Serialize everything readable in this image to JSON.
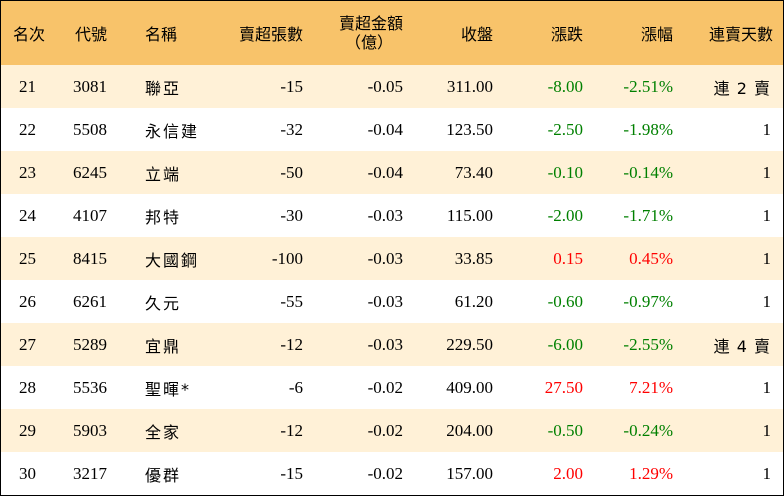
{
  "table": {
    "headers": {
      "rank": "名次",
      "code": "代號",
      "name": "名稱",
      "net_sell_lots": "賣超張數",
      "net_sell_amount_line1": "賣超金額",
      "net_sell_amount_line2": "（億）",
      "close": "收盤",
      "change": "漲跌",
      "change_pct": "漲幅",
      "consecutive_days": "連賣天數"
    },
    "colors": {
      "header_bg": "#f8c36a",
      "odd_row_bg": "#fff1d7",
      "even_row_bg": "#ffffff",
      "up": "#ff0000",
      "down": "#008000"
    },
    "rows": [
      {
        "rank": "21",
        "code": "3081",
        "name": "聯亞",
        "lots": "-15",
        "amount": "-0.05",
        "close": "311.00",
        "change": "-8.00",
        "pct": "-2.51%",
        "days": "連 2 賣",
        "dir": "down"
      },
      {
        "rank": "22",
        "code": "5508",
        "name": "永信建",
        "lots": "-32",
        "amount": "-0.04",
        "close": "123.50",
        "change": "-2.50",
        "pct": "-1.98%",
        "days": "1",
        "dir": "down"
      },
      {
        "rank": "23",
        "code": "6245",
        "name": "立端",
        "lots": "-50",
        "amount": "-0.04",
        "close": "73.40",
        "change": "-0.10",
        "pct": "-0.14%",
        "days": "1",
        "dir": "down"
      },
      {
        "rank": "24",
        "code": "4107",
        "name": "邦特",
        "lots": "-30",
        "amount": "-0.03",
        "close": "115.00",
        "change": "-2.00",
        "pct": "-1.71%",
        "days": "1",
        "dir": "down"
      },
      {
        "rank": "25",
        "code": "8415",
        "name": "大國鋼",
        "lots": "-100",
        "amount": "-0.03",
        "close": "33.85",
        "change": "0.15",
        "pct": "0.45%",
        "days": "1",
        "dir": "up"
      },
      {
        "rank": "26",
        "code": "6261",
        "name": "久元",
        "lots": "-55",
        "amount": "-0.03",
        "close": "61.20",
        "change": "-0.60",
        "pct": "-0.97%",
        "days": "1",
        "dir": "down"
      },
      {
        "rank": "27",
        "code": "5289",
        "name": "宜鼎",
        "lots": "-12",
        "amount": "-0.03",
        "close": "229.50",
        "change": "-6.00",
        "pct": "-2.55%",
        "days": "連 4 賣",
        "dir": "down"
      },
      {
        "rank": "28",
        "code": "5536",
        "name": "聖暉*",
        "lots": "-6",
        "amount": "-0.02",
        "close": "409.00",
        "change": "27.50",
        "pct": "7.21%",
        "days": "1",
        "dir": "up"
      },
      {
        "rank": "29",
        "code": "5903",
        "name": "全家",
        "lots": "-12",
        "amount": "-0.02",
        "close": "204.00",
        "change": "-0.50",
        "pct": "-0.24%",
        "days": "1",
        "dir": "down"
      },
      {
        "rank": "30",
        "code": "3217",
        "name": "優群",
        "lots": "-15",
        "amount": "-0.02",
        "close": "157.00",
        "change": "2.00",
        "pct": "1.29%",
        "days": "1",
        "dir": "up"
      }
    ]
  }
}
